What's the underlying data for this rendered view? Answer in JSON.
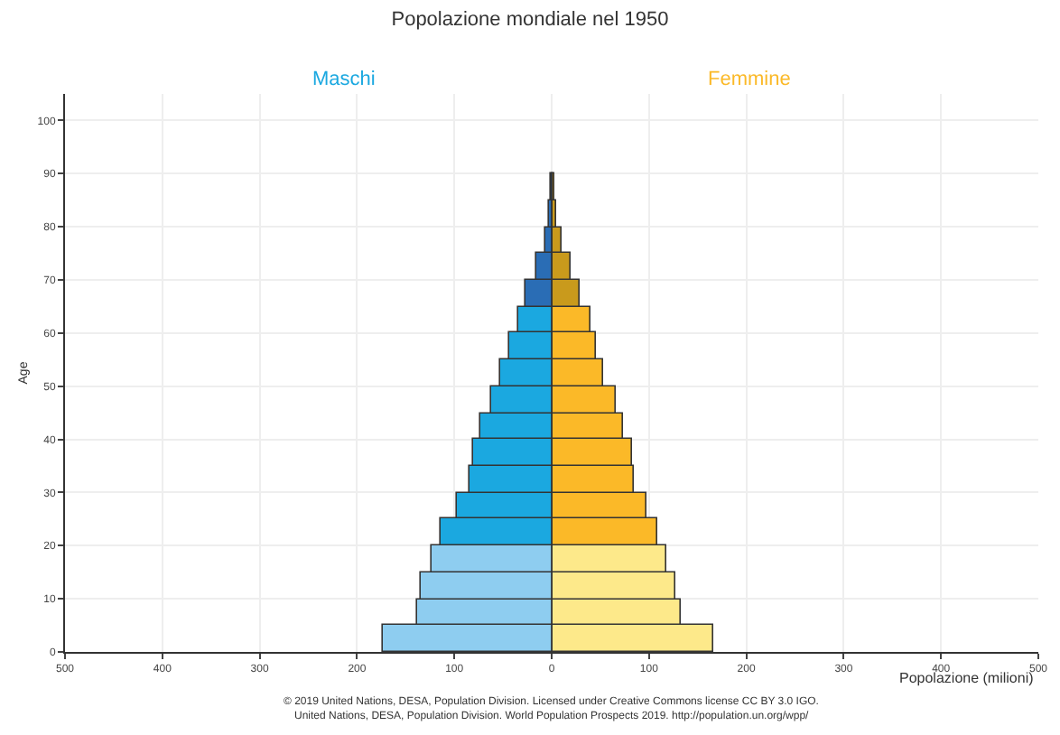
{
  "chart_data": {
    "type": "bar",
    "orientation": "horizontal",
    "stacked": true,
    "title": "Popolazione mondiale nel 1950",
    "xlabel": "Popolazione (milioni)",
    "ylabel": "Age",
    "x": [
      2.5,
      7.5,
      12.5,
      17.5,
      22.5,
      27.5,
      32.5,
      37.5,
      42.5,
      47.5,
      52.5,
      57.5,
      62.5,
      67.5,
      72.5,
      77.5,
      82.5,
      87.5,
      92.5,
      97.5,
      102.5
    ],
    "series": [
      {
        "name": "Maschi",
        "values": [
          -173,
          -138,
          -134,
          -124,
          -115,
          -98,
          -85,
          -81,
          -73,
          -63,
          -53,
          -43,
          -34,
          -27,
          -16,
          -7,
          -3,
          -1,
          0,
          0,
          0
        ],
        "colors": [
          "#8ecdf0",
          "#8ecdf0",
          "#8ecdf0",
          "#8ecdf0",
          "#1ba8e0",
          "#1ba8e0",
          "#1ba8e0",
          "#1ba8e0",
          "#1ba8e0",
          "#1ba8e0",
          "#1ba8e0",
          "#1ba8e0",
          "#1ba8e0",
          "#2a6db5",
          "#2a6db5",
          "#2a6db5",
          "#2a6db5",
          "#2a6db5",
          "#2a6db5",
          "#2a6db5",
          "#2a6db5"
        ]
      },
      {
        "name": "Femmine",
        "values": [
          166,
          133,
          128,
          118,
          109,
          97,
          84,
          82,
          74,
          65,
          53,
          45,
          39,
          29,
          20,
          10,
          5,
          2,
          0,
          0,
          0
        ],
        "colors": [
          "#fde98a",
          "#fde98a",
          "#fde98a",
          "#fde98a",
          "#fbb928",
          "#fbb928",
          "#fbb928",
          "#fbb928",
          "#fbb928",
          "#fbb928",
          "#fbb928",
          "#fbb928",
          "#fbb928",
          "#c99a1c",
          "#c99a1c",
          "#c99a1c",
          "#c99a1c",
          "#c99a1c",
          "#c99a1c",
          "#c99a1c",
          "#c99a1c"
        ]
      }
    ],
    "xlim": [
      -500,
      500
    ],
    "xticks": [
      {
        "value": -500,
        "label": "500"
      },
      {
        "value": -400,
        "label": "400"
      },
      {
        "value": -300,
        "label": "300"
      },
      {
        "value": -200,
        "label": "200"
      },
      {
        "value": -100,
        "label": "100"
      },
      0,
      100,
      200,
      300,
      400,
      500
    ],
    "ylim": [
      0,
      105
    ],
    "yticks": [
      0,
      10,
      20,
      30,
      40,
      50,
      60,
      70,
      80,
      90,
      100
    ],
    "grid": true,
    "legend": false,
    "annotations": [
      "© 2019 United Nations, DESA, Population Division. Licensed under Creative Commons license CC BY 3.0 IGO.",
      "United Nations, DESA, Population Division. World Population Prospects 2019. http://population.un.org/wpp/"
    ]
  }
}
